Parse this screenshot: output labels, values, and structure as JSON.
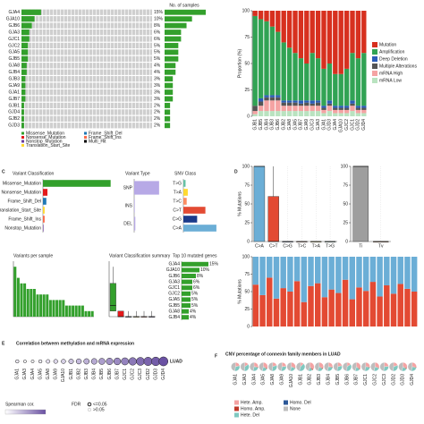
{
  "chart_data": [
    {
      "type": "oncoprint",
      "xlabel": "No. of samples",
      "genes": [
        "GJA4",
        "GJA10",
        "GJB6",
        "GJA3",
        "GJC1",
        "GJC2",
        "GJA5",
        "GJB5",
        "GJA8",
        "GJB4",
        "GJB3",
        "GJA9",
        "GJA1",
        "GJB7",
        "GJB1",
        "GJD4",
        "GJB2",
        "GJD3"
      ],
      "values": [
        15,
        10,
        8,
        6,
        6,
        5,
        5,
        5,
        4,
        4,
        3,
        3,
        3,
        3,
        2,
        2,
        2,
        2
      ],
      "value_labels": [
        "15%",
        "10%",
        "8%",
        "6%",
        "6%",
        "5%",
        "5%",
        "5%",
        "4%",
        "4%",
        "3%",
        "3%",
        "3%",
        "3%",
        "2%",
        "2%",
        "2%",
        "2%"
      ],
      "xlim": [
        0,
        15
      ],
      "color": "#33a02c",
      "legend": [
        {
          "name": "Missense_Mutation",
          "color": "#33a02c"
        },
        {
          "name": "Nonsense_Mutation",
          "color": "#e31a1c"
        },
        {
          "name": "Nonstop_Mutation",
          "color": "#6a3d9a"
        },
        {
          "name": "Translation_Start_Site",
          "color": "#ffd92f"
        },
        {
          "name": "Frame_Shift_Del",
          "color": "#1f78b4"
        },
        {
          "name": "Frame_Shift_Ins",
          "color": "#fb6a4a"
        },
        {
          "name": "Multi_Hit",
          "color": "#000000"
        }
      ]
    },
    {
      "type": "stacked",
      "ylabel": "Proportion (%)",
      "categories": [
        "GJB1",
        "GJB5",
        "GJB4",
        "GJB3",
        "GJB6",
        "GJB2",
        "GJA8",
        "GJA5",
        "GJB7",
        "GJA9",
        "GJC3",
        "GJA3",
        "GJA1",
        "GJD3",
        "GJA4",
        "GJA10",
        "GJC2",
        "GJC1",
        "GJD2",
        "GJD4"
      ],
      "ylim": [
        0,
        100
      ],
      "yticks": [
        0,
        25,
        50,
        75,
        100
      ],
      "series": [
        {
          "name": "Mutation",
          "color": "#d7301f",
          "values": [
            5,
            8,
            10,
            15,
            20,
            30,
            35,
            40,
            45,
            50,
            40,
            45,
            55,
            50,
            60,
            60,
            55,
            40,
            45,
            40
          ]
        },
        {
          "name": "Amplification",
          "color": "#31a354",
          "values": [
            85,
            75,
            70,
            65,
            60,
            55,
            50,
            45,
            40,
            35,
            45,
            40,
            35,
            35,
            30,
            30,
            35,
            45,
            45,
            50
          ]
        },
        {
          "name": "Deep Deletion",
          "color": "#2b5cb8",
          "values": [
            0,
            3,
            2,
            2,
            2,
            2,
            2,
            2,
            3,
            2,
            3,
            2,
            2,
            3,
            2,
            2,
            2,
            3,
            2,
            2
          ]
        },
        {
          "name": "Multiple Alterations",
          "color": "#555555",
          "values": [
            5,
            4,
            3,
            3,
            3,
            3,
            3,
            3,
            2,
            3,
            2,
            3,
            2,
            2,
            2,
            2,
            2,
            2,
            2,
            2
          ]
        },
        {
          "name": "mRNA High",
          "color": "#f5a3a3",
          "values": [
            3,
            5,
            10,
            10,
            10,
            5,
            5,
            5,
            5,
            5,
            5,
            5,
            3,
            5,
            3,
            3,
            3,
            5,
            3,
            3
          ]
        },
        {
          "name": "mRNA Low",
          "color": "#b9e3c0",
          "values": [
            2,
            5,
            5,
            5,
            5,
            5,
            5,
            5,
            5,
            5,
            5,
            5,
            3,
            5,
            3,
            3,
            3,
            5,
            3,
            3
          ]
        }
      ]
    },
    {
      "type": "hbar",
      "label": "C",
      "title": "Variant Classification",
      "categories": [
        "Missense_Mutation",
        "Nonsense_Mutation",
        "Frame_Shift_Del",
        "Translation_Start_Site",
        "Frame_Shift_Ins",
        "Nonstop_Mutation"
      ],
      "values": [
        120,
        8,
        6,
        3,
        3,
        1
      ],
      "xlim": [
        0,
        130
      ],
      "colors": [
        "#33a02c",
        "#e31a1c",
        "#1f78b4",
        "#ffd92f",
        "#fb6a4a",
        "#6a3d9a"
      ]
    },
    {
      "type": "hbar",
      "title": "Variant Type",
      "categories": [
        "SNP",
        "INS",
        "DEL"
      ],
      "values": [
        130,
        3,
        6
      ],
      "xlim": [
        0,
        140
      ],
      "color": "#b7a9e6"
    },
    {
      "type": "hbar",
      "title": "SNV Class",
      "categories": [
        "T>G",
        "T>A",
        "T>C",
        "C>T",
        "C>G",
        "C>A"
      ],
      "values": [
        4,
        8,
        6,
        40,
        25,
        60
      ],
      "xlim": [
        0,
        65
      ],
      "colors": [
        "#66c2a5",
        "#ffd92f",
        "#fc8d62",
        "#e34a33",
        "#1a3a8a",
        "#6baed6"
      ]
    },
    {
      "type": "bar",
      "title": "Variants per sample",
      "values": [
        9,
        7,
        6,
        6,
        5,
        5,
        5,
        4,
        4,
        4,
        4,
        3,
        3,
        3,
        3,
        3,
        2,
        2,
        2,
        2,
        2,
        2,
        1,
        1,
        1
      ],
      "ylim": [
        0,
        10
      ],
      "color": "#33a02c"
    },
    {
      "type": "box",
      "title": "Variant Classification summary",
      "ylim": [
        0,
        10
      ],
      "values": [
        [
          1,
          1,
          2,
          6,
          9
        ],
        [
          0,
          0,
          0,
          1,
          1
        ],
        [
          0,
          0,
          0,
          0,
          1
        ],
        [
          0,
          0,
          0,
          0,
          1
        ],
        [
          0,
          0,
          0,
          0,
          1
        ],
        [
          0,
          0,
          0,
          0,
          1
        ]
      ],
      "colors": [
        "#33a02c",
        "#e31a1c",
        "#1f78b4",
        "#ffd92f",
        "#fb6a4a",
        "#6a3d9a"
      ]
    },
    {
      "type": "hbar",
      "title": "Top 10 mutated genes",
      "categories": [
        "GJA4",
        "GJA10",
        "GJB6",
        "GJA3",
        "GJC1",
        "GJC2",
        "GJA5",
        "GJB5",
        "GJA8",
        "GJB4"
      ],
      "values": [
        15,
        10,
        8,
        6,
        6,
        5,
        5,
        5,
        4,
        4
      ],
      "value_labels": [
        "15%",
        "10%",
        "8%",
        "6%",
        "6%",
        "5%",
        "5%",
        "5%",
        "4%",
        "4%"
      ],
      "xlim": [
        0,
        15
      ],
      "color": "#33a02c"
    },
    {
      "type": "box",
      "label": "D",
      "ylabel": "% Mutations",
      "categories": [
        "C>A",
        "C>T",
        "C>G",
        "T>C",
        "T>A",
        "T>G"
      ],
      "ylim": [
        0,
        100
      ],
      "yticks": [
        0,
        25,
        50,
        75,
        100
      ],
      "values": [
        [
          0,
          0,
          100,
          100,
          100
        ],
        [
          0,
          0,
          0,
          60,
          100
        ],
        [
          0,
          0,
          0,
          0,
          0
        ],
        [
          0,
          0,
          0,
          0,
          0
        ],
        [
          0,
          0,
          0,
          0,
          0
        ],
        [
          0,
          0,
          0,
          0,
          0
        ]
      ],
      "colors": [
        "#6baed6",
        "#e34a33",
        "#1a3a8a",
        "#fc8d62",
        "#ffd92f",
        "#66c2a5"
      ]
    },
    {
      "type": "box",
      "categories": [
        "Ti",
        "Tv"
      ],
      "ylim": [
        0,
        100
      ],
      "yticks": [
        0,
        25,
        50,
        75,
        100
      ],
      "values": [
        [
          0,
          0,
          100,
          100,
          100
        ],
        [
          0,
          0,
          0,
          0,
          0
        ]
      ],
      "colors": [
        "#9e9e9e",
        "#d95f02"
      ]
    },
    {
      "type": "stacked",
      "ylabel": "% Mutations",
      "ylim": [
        0,
        100
      ],
      "yticks": [
        0,
        25,
        50,
        75,
        100
      ],
      "series": [
        {
          "color": "#6baed6",
          "values": [
            40,
            55,
            30,
            60,
            45,
            50,
            35,
            65,
            42,
            38,
            58,
            47,
            52,
            33,
            61,
            44,
            49,
            36,
            57,
            41,
            53,
            39,
            46,
            50
          ]
        },
        {
          "color": "#e34a33",
          "values": [
            60,
            45,
            70,
            40,
            55,
            50,
            65,
            35,
            58,
            62,
            42,
            53,
            48,
            67,
            39,
            56,
            51,
            64,
            43,
            59,
            47,
            61,
            54,
            50
          ]
        }
      ]
    },
    {
      "type": "dot",
      "label": "E",
      "title": "Correlation between methylation and mRNA expression",
      "row": "LUAD",
      "categories": [
        "GJA1",
        "GJA3",
        "GJA4",
        "GJA5",
        "GJA8",
        "GJA9",
        "GJA10",
        "GJB1",
        "GJB2",
        "GJB3",
        "GJB4",
        "GJB5",
        "GJB6",
        "GJB7",
        "GJC1",
        "GJC2",
        "GJC3",
        "GJD2",
        "GJD3",
        "GJD4"
      ],
      "values": [
        0.05,
        0.02,
        -0.02,
        -0.05,
        -0.08,
        -0.1,
        -0.12,
        -0.15,
        -0.18,
        -0.2,
        -0.22,
        -0.25,
        -0.28,
        -0.3,
        -0.32,
        -0.35,
        -0.38,
        -0.4,
        -0.42,
        -0.45
      ],
      "colors": [
        "#ffffff",
        "#6a51a3"
      ],
      "legend_title": "Spearman cor.",
      "fdr_title": "FDR",
      "fdr_items": [
        "<=0.05",
        ">0.05"
      ]
    },
    {
      "type": "pie",
      "label": "F",
      "title": "CNV percentage of connexin family members in LUAD",
      "categories": [
        "GJA1",
        "GJA3",
        "GJA4",
        "GJA5",
        "GJA8",
        "GJA9",
        "GJA10",
        "GJB1",
        "GJB2",
        "GJB3",
        "GJB4",
        "GJB5",
        "GJB6",
        "GJB7",
        "GJC1",
        "GJC2",
        "GJC3",
        "GJD2",
        "GJD3",
        "GJD4"
      ],
      "series": [
        {
          "name": "Hete. Amp.",
          "color": "#f4a3a3",
          "values": [
            20,
            15,
            25,
            30,
            18,
            22,
            28,
            12,
            35,
            30,
            25,
            20,
            15,
            32,
            25,
            28,
            22,
            18,
            30,
            26
          ]
        },
        {
          "name": "Homo. Amp.",
          "color": "#c0392b",
          "values": [
            2,
            1,
            3,
            4,
            2,
            2,
            3,
            1,
            5,
            4,
            3,
            2,
            1,
            4,
            3,
            3,
            2,
            2,
            4,
            3
          ]
        },
        {
          "name": "Hete. Del",
          "color": "#7fc8c0",
          "values": [
            30,
            35,
            25,
            20,
            32,
            28,
            22,
            40,
            15,
            20,
            25,
            30,
            35,
            18,
            25,
            22,
            28,
            32,
            20,
            24
          ]
        },
        {
          "name": "Homo. Del",
          "color": "#2b5797",
          "values": [
            1,
            1,
            1,
            1,
            1,
            1,
            1,
            2,
            1,
            1,
            1,
            1,
            2,
            1,
            1,
            1,
            1,
            1,
            1,
            1
          ]
        },
        {
          "name": "None",
          "color": "#bdbdbd",
          "values": [
            47,
            48,
            46,
            45,
            47,
            47,
            46,
            45,
            44,
            45,
            46,
            47,
            47,
            45,
            46,
            46,
            47,
            47,
            45,
            46
          ]
        }
      ]
    }
  ]
}
